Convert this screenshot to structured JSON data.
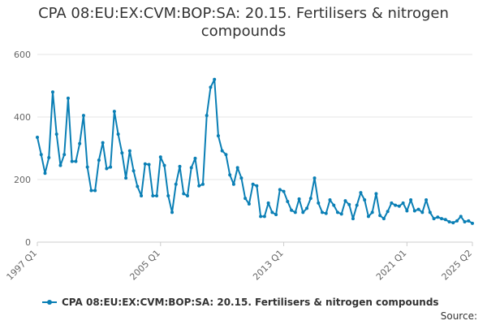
{
  "chart_data": {
    "type": "line",
    "title": "CPA 08:EU:EX:CVM:BOP:SA: 20.15. Fertilisers & nitrogen compounds",
    "title_line1": "CPA 08:EU:EX:CVM:BOP:SA: 20.15. Fertilisers & nitrogen",
    "title_line2": "compounds",
    "xlabel": "",
    "ylabel": "",
    "ylim": [
      0,
      600
    ],
    "yticks": [
      "0",
      "200",
      "400",
      "600"
    ],
    "xticks": [
      "1997 Q1",
      "2005 Q1",
      "2013 Q1",
      "2021 Q1",
      "2025 Q2"
    ],
    "grid": true,
    "legend_position": "bottom",
    "color": "#0a7fb5",
    "series": [
      {
        "name": "CPA 08:EU:EX:CVM:BOP:SA: 20.15. Fertilisers & nitrogen compounds",
        "start": "1997 Q1",
        "frequency": "quarterly",
        "values": [
          335,
          280,
          220,
          270,
          480,
          345,
          245,
          280,
          460,
          258,
          258,
          315,
          405,
          240,
          165,
          165,
          262,
          318,
          235,
          240,
          418,
          345,
          285,
          205,
          292,
          228,
          178,
          148,
          250,
          248,
          148,
          148,
          272,
          245,
          148,
          95,
          185,
          242,
          155,
          148,
          238,
          268,
          180,
          185,
          405,
          495,
          520,
          340,
          292,
          280,
          215,
          185,
          238,
          205,
          140,
          122,
          185,
          180,
          82,
          82,
          125,
          95,
          88,
          168,
          162,
          130,
          102,
          95,
          138,
          95,
          108,
          140,
          205,
          125,
          95,
          92,
          135,
          118,
          95,
          90,
          132,
          120,
          75,
          118,
          158,
          135,
          82,
          95,
          155,
          85,
          75,
          98,
          125,
          118,
          115,
          125,
          100,
          135,
          100,
          105,
          95,
          135,
          95,
          75,
          80,
          75,
          72,
          65,
          62,
          68,
          82,
          65,
          68,
          60
        ]
      }
    ]
  },
  "source_label": "Source:"
}
